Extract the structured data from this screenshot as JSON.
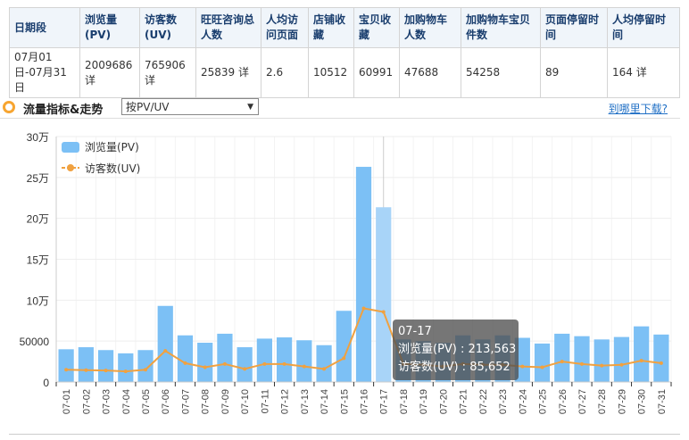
{
  "summary": {
    "headers": [
      "日期段",
      "浏览量(PV)",
      "访客数(UV)",
      "旺旺咨询总人数",
      "人均访问页面",
      "店铺收藏",
      "宝贝收藏",
      "加购物车人数",
      "加购物车宝贝件数",
      "页面停留时间",
      "人均停留时间"
    ],
    "row": [
      "07月01日-07月31日",
      "2009686 详",
      "765906 详",
      "25839  详",
      "2.6",
      "10512",
      "60991",
      "47688",
      "54258",
      "89",
      "164  详"
    ]
  },
  "section": {
    "title": "流量指标&走势",
    "select_value": "按PV/UV",
    "link": "到哪里下载?"
  },
  "tooltip": {
    "date": "07-17",
    "pv": "浏览量(PV) : 213,563",
    "uv": "访客数(UV) : 85,652"
  },
  "chart_data": {
    "type": "bar+line",
    "categories": [
      "07-01",
      "07-02",
      "07-03",
      "07-04",
      "07-05",
      "07-06",
      "07-07",
      "07-08",
      "07-09",
      "07-10",
      "07-11",
      "07-12",
      "07-13",
      "07-14",
      "07-15",
      "07-16",
      "07-17",
      "07-18",
      "07-19",
      "07-20",
      "07-21",
      "07-22",
      "07-23",
      "07-24",
      "07-25",
      "07-26",
      "07-27",
      "07-28",
      "07-29",
      "07-30",
      "07-31"
    ],
    "series": [
      {
        "name": "浏览量(PV)",
        "type": "bar",
        "color": "#7cc0f5",
        "values": [
          40000,
          42500,
          39000,
          35000,
          39000,
          93000,
          57000,
          48000,
          59000,
          42500,
          53000,
          54500,
          51000,
          45000,
          87000,
          263000,
          213563,
          52000,
          50000,
          48000,
          57000,
          52000,
          57000,
          54000,
          47000,
          59000,
          56000,
          52000,
          55000,
          68000,
          58000
        ]
      },
      {
        "name": "访客数(UV)",
        "type": "line",
        "color": "#f0a140",
        "values": [
          15000,
          14500,
          14000,
          13000,
          15000,
          38000,
          23000,
          18000,
          22000,
          16000,
          22000,
          22000,
          19000,
          16000,
          29000,
          90000,
          85652,
          22000,
          21000,
          19000,
          22000,
          21000,
          21000,
          19000,
          18000,
          25000,
          22000,
          20000,
          21000,
          26000,
          23000
        ]
      }
    ],
    "yticks": [
      "0",
      "50000",
      "10万",
      "15万",
      "20万",
      "25万",
      "30万"
    ],
    "ylim": [
      0,
      300000
    ],
    "highlight": "07-17",
    "legend": "top-left",
    "grid": true
  }
}
